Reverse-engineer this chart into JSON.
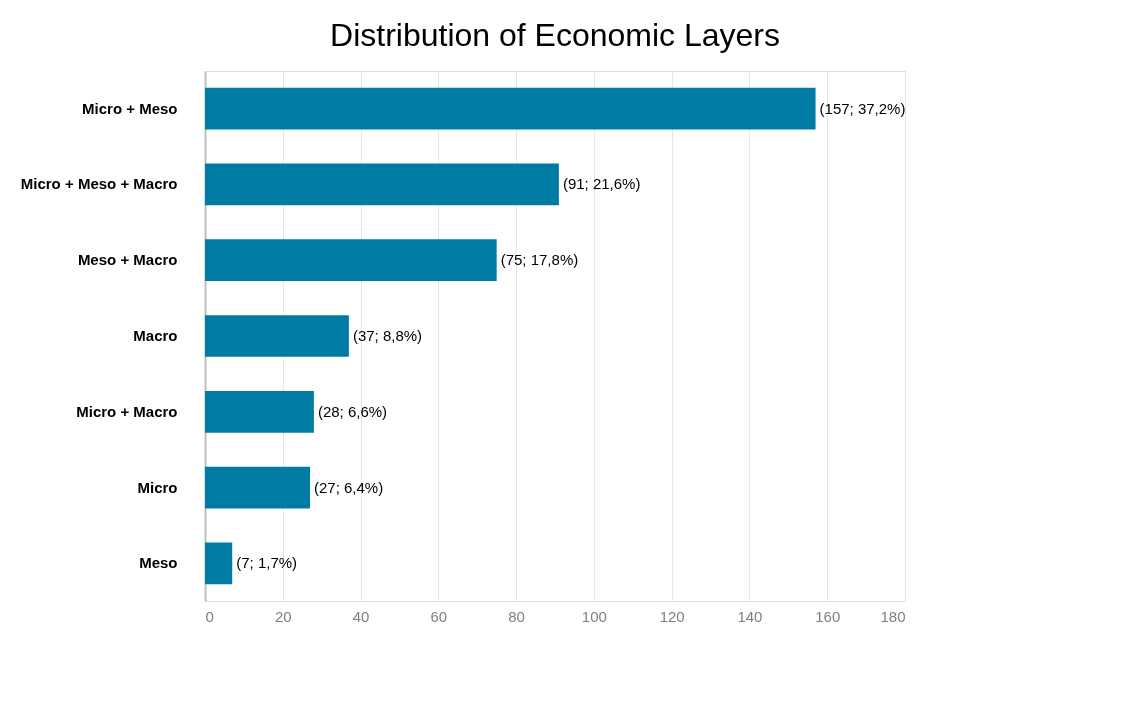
{
  "chart_data": {
    "type": "bar",
    "orientation": "horizontal",
    "title": "Distribution of Economic Layers",
    "categories": [
      "Micro + Meso",
      "Micro + Meso + Macro",
      "Meso + Macro",
      "Macro",
      "Micro + Macro",
      "Micro",
      "Meso"
    ],
    "values": [
      157,
      91,
      75,
      37,
      28,
      27,
      7
    ],
    "value_labels": [
      "(157; 37,2%)",
      "(91; 21,6%)",
      "(75; 17,8%)",
      "(37; 8,8%)",
      "(28; 6,6%)",
      "(27; 6,4%)",
      "(7; 1,7%)"
    ],
    "color": "#007ba3",
    "xlim": [
      0,
      180
    ],
    "xticks": [
      0,
      20,
      40,
      60,
      80,
      100,
      120,
      140,
      160,
      180
    ],
    "grid": "x"
  }
}
